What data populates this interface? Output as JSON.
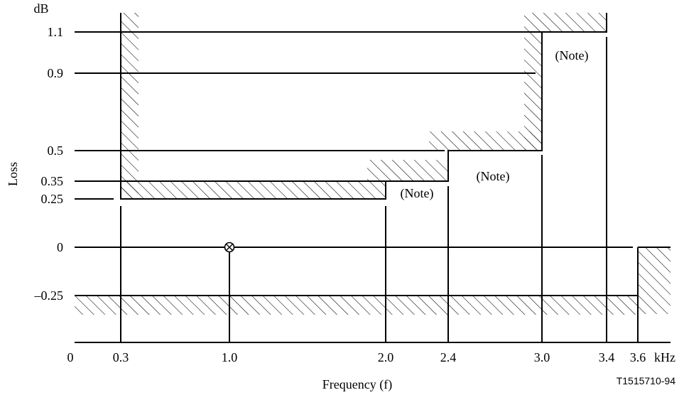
{
  "figure": {
    "y_unit": "dB",
    "y_axis_label": "Loss",
    "x_axis_label": "Frequency (f)",
    "x_unit": "kHz",
    "figure_id": "T1515710-94",
    "note_label": "(Note)",
    "y_ticks": [
      "1.1",
      "0.9",
      "0.5",
      "0.35",
      "0.25",
      "0",
      "–0.25"
    ],
    "x_ticks": [
      "0",
      "0.3",
      "1.0",
      "2.0",
      "2.4",
      "3.0",
      "3.4",
      "3.6"
    ],
    "reference_point": {
      "frequency": 1.0,
      "loss": 0
    },
    "upper_limit": [
      {
        "from": 0.3,
        "to": 2.0,
        "loss": 0.25
      },
      {
        "from": 2.0,
        "to": 2.4,
        "loss": 0.35
      },
      {
        "from": 2.4,
        "to": 3.0,
        "loss": 0.5
      },
      {
        "from": 3.0,
        "to": 3.4,
        "loss": 1.1
      }
    ],
    "lower_limit": [
      {
        "from": 0,
        "to": 3.6,
        "loss": -0.25
      }
    ]
  }
}
